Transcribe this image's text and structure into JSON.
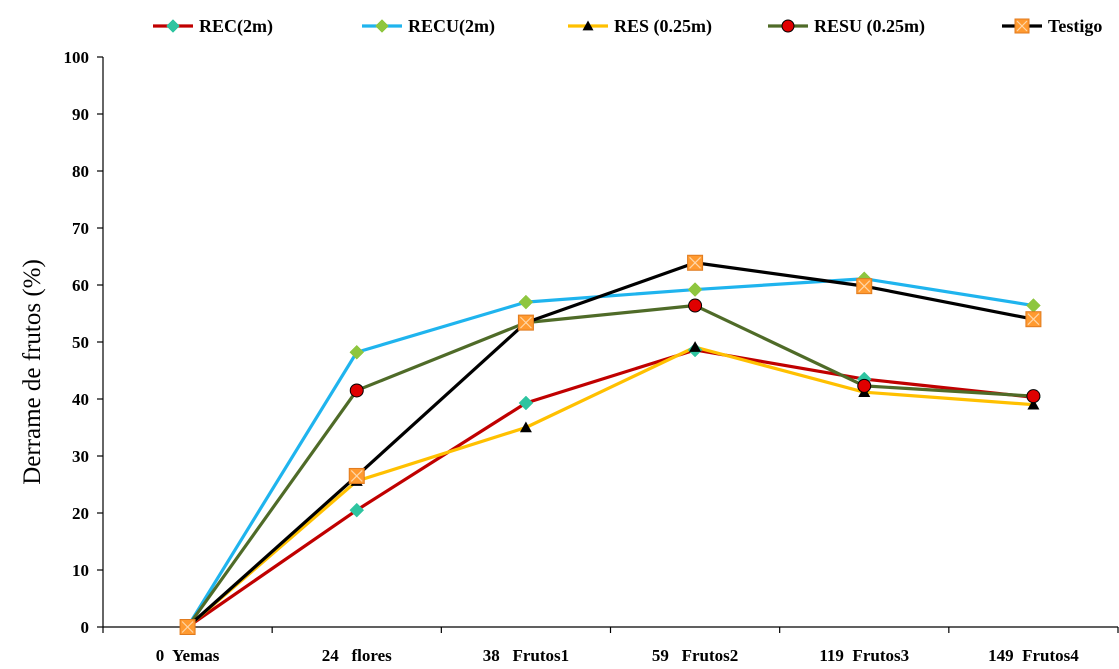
{
  "chart_data": {
    "type": "line",
    "title": "",
    "xlabel": "",
    "ylabel": "Derrame de frutos (%)",
    "ylim": [
      0,
      100
    ],
    "yticks": [
      0,
      10,
      20,
      30,
      40,
      50,
      60,
      70,
      80,
      90,
      100
    ],
    "grid": false,
    "legend_position": "top",
    "categories": [
      "0  Yemas",
      "24   flores",
      "38   Frutos1",
      "59   Frutos2",
      "119  Frutos3",
      "149  Frutos4"
    ],
    "series": [
      {
        "name": "REC(2m)",
        "color": "#c00000",
        "marker": "diamond",
        "marker_color": "#2ec4a0",
        "values": [
          0,
          20.5,
          39.3,
          48.6,
          43.5,
          40.3
        ]
      },
      {
        "name": "RECU(2m)",
        "color": "#1fb4ee",
        "marker": "diamond",
        "marker_color": "#8ec63f",
        "values": [
          0,
          48.2,
          57.0,
          59.2,
          61.1,
          56.4
        ]
      },
      {
        "name": "RES (0.25m)",
        "color": "#ffc000",
        "marker": "triangle",
        "marker_color": "#000000",
        "values": [
          0,
          25.6,
          35.0,
          49.1,
          41.2,
          39.0
        ]
      },
      {
        "name": "RESU (0.25m)",
        "color": "#4f6b28",
        "marker": "circle",
        "marker_color": "#e00000",
        "values": [
          0,
          41.5,
          53.4,
          56.4,
          42.3,
          40.5
        ]
      },
      {
        "name": "Testigo",
        "color": "#000000",
        "marker": "square",
        "marker_color": "#ff9a30",
        "values": [
          0,
          26.5,
          53.4,
          63.9,
          59.8,
          54.0
        ]
      }
    ]
  }
}
